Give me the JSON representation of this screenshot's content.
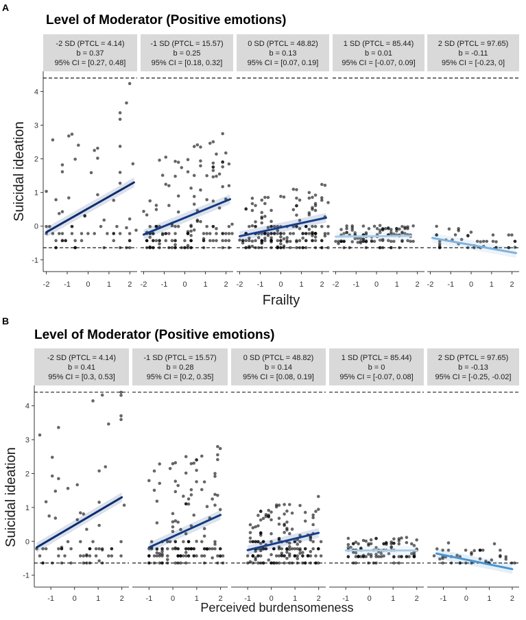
{
  "chart_data": [
    {
      "panel_label": "A",
      "type": "scatter",
      "title": "Level of Moderator (Positive emotions)",
      "xlabel": "Frailty",
      "ylabel": "Suicidal ideation",
      "ylim": [
        -1.35,
        4.6
      ],
      "y_ticks": [
        "-1",
        "0",
        "1",
        "2",
        "3",
        "4"
      ],
      "x_ticks": [
        "-2",
        "-1",
        "0",
        "1",
        "2"
      ],
      "xlim": [
        -2.15,
        2.35
      ],
      "reference_lines_y": [
        -0.64,
        4.4
      ],
      "facets": [
        {
          "label": [
            "-2 SD (PTCL = 4.14)",
            "b = 0.37",
            "95% CI = [0.27, 0.48]"
          ],
          "line_color": "#0c2d70",
          "b": 0.37,
          "ci": [
            0.27,
            0.48
          ],
          "fit": {
            "x0": -2,
            "y0": -0.18,
            "x1": 2.2,
            "y1": 1.3
          },
          "x_range": [
            -2.0,
            2.3
          ]
        },
        {
          "label": [
            "-1 SD (PTCL = 15.57)",
            "b = 0.25",
            "95% CI = [0.18, 0.32]"
          ],
          "line_color": "#123a80",
          "b": 0.25,
          "ci": [
            0.18,
            0.32
          ],
          "fit": {
            "x0": -2,
            "y0": -0.25,
            "x1": 2.2,
            "y1": 0.8
          },
          "x_range": [
            -2.0,
            2.3
          ]
        },
        {
          "label": [
            "0 SD (PTCL = 48.82)",
            "b = 0.13",
            "95% CI = [0.07, 0.19]"
          ],
          "line_color": "#163f8a",
          "b": 0.13,
          "ci": [
            0.07,
            0.19
          ],
          "fit": {
            "x0": -2,
            "y0": -0.3,
            "x1": 2.2,
            "y1": 0.25
          },
          "x_range": [
            -2.0,
            2.3
          ]
        },
        {
          "label": [
            "1 SD (PTCL = 85.44)",
            "b = 0.01",
            "95% CI = [-0.07, 0.09]"
          ],
          "line_color": "#a9cbe8",
          "b": 0.01,
          "ci": [
            -0.07,
            0.09
          ],
          "fit": {
            "x0": -2,
            "y0": -0.31,
            "x1": 1.7,
            "y1": -0.29
          },
          "x_range": [
            -2.0,
            1.8
          ]
        },
        {
          "label": [
            "2 SD (PTCL = 97.65)",
            "b = -0.11",
            "95% CI = [-0.23, 0]"
          ],
          "line_color": "#7fb2dd",
          "b": -0.11,
          "ci": [
            -0.23,
            0
          ],
          "fit": {
            "x0": -1.9,
            "y0": -0.35,
            "x1": 2.2,
            "y1": -0.8
          },
          "x_range": [
            -2.0,
            2.3
          ]
        }
      ]
    },
    {
      "panel_label": "B",
      "type": "scatter",
      "title": "Level of Moderator (Positive emotions)",
      "xlabel": "Perceived burdensomeness",
      "ylabel": "Suicidal ideation",
      "ylim": [
        -1.35,
        4.6
      ],
      "y_ticks": [
        "-1",
        "0",
        "1",
        "2",
        "3",
        "4"
      ],
      "x_ticks": [
        "-1",
        "0",
        "1",
        "2"
      ],
      "xlim": [
        -1.7,
        2.3
      ],
      "reference_lines_y": [
        -0.64,
        4.4
      ],
      "facets": [
        {
          "label": [
            "-2 SD (PTCL = 4.14)",
            "b = 0.41",
            "95% CI = [0.3, 0.53]"
          ],
          "line_color": "#0c2d70",
          "b": 0.41,
          "ci": [
            0.3,
            0.53
          ],
          "fit": {
            "x0": -1.6,
            "y0": -0.18,
            "x1": 2.0,
            "y1": 1.3
          },
          "x_range": [
            -1.6,
            2.1
          ]
        },
        {
          "label": [
            "-1 SD (PTCL = 15.57)",
            "b = 0.28",
            "95% CI = [0.2, 0.35]"
          ],
          "line_color": "#123a80",
          "b": 0.28,
          "ci": [
            0.2,
            0.35
          ],
          "fit": {
            "x0": -1.0,
            "y0": -0.18,
            "x1": 2.0,
            "y1": 0.78
          },
          "x_range": [
            -1.0,
            2.1
          ]
        },
        {
          "label": [
            "0 SD (PTCL = 48.82)",
            "b = 0.14",
            "95% CI = [0.08, 0.19]"
          ],
          "line_color": "#163f8a",
          "b": 0.14,
          "ci": [
            0.08,
            0.19
          ],
          "fit": {
            "x0": -1.0,
            "y0": -0.26,
            "x1": 2.0,
            "y1": 0.25
          },
          "x_range": [
            -1.0,
            2.1
          ]
        },
        {
          "label": [
            "1 SD (PTCL = 85.44)",
            "b = 0",
            "95% CI = [-0.07, 0.08]"
          ],
          "line_color": "#a9cbe8",
          "b": 0,
          "ci": [
            -0.07,
            0.08
          ],
          "fit": {
            "x0": -1.0,
            "y0": -0.27,
            "x1": 2.0,
            "y1": -0.27
          },
          "x_range": [
            -1.0,
            2.0
          ]
        },
        {
          "label": [
            "2 SD (PTCL = 97.65)",
            "b = -0.13",
            "95% CI = [-0.25, -0.02]"
          ],
          "line_color": "#4a93cf",
          "b": -0.13,
          "ci": [
            -0.25,
            -0.02
          ],
          "fit": {
            "x0": -1.3,
            "y0": -0.36,
            "x1": 2.0,
            "y1": -0.82
          },
          "x_range": [
            -1.4,
            2.1
          ]
        }
      ]
    }
  ]
}
